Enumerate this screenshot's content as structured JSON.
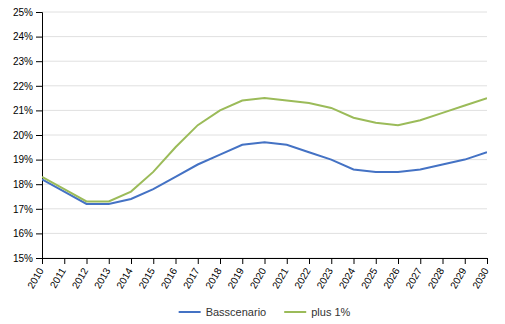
{
  "chart_data": {
    "type": "line",
    "x": [
      2010,
      2011,
      2012,
      2013,
      2014,
      2015,
      2016,
      2017,
      2018,
      2019,
      2020,
      2021,
      2022,
      2023,
      2024,
      2025,
      2026,
      2027,
      2028,
      2029,
      2030
    ],
    "series": [
      {
        "name": "Basscenario",
        "color": "#4472C4",
        "values": [
          0.182,
          0.177,
          0.172,
          0.172,
          0.174,
          0.178,
          0.183,
          0.188,
          0.192,
          0.196,
          0.197,
          0.196,
          0.193,
          0.19,
          0.186,
          0.185,
          0.185,
          0.186,
          0.188,
          0.19,
          0.193
        ]
      },
      {
        "name": "plus 1%",
        "color": "#9BBB59",
        "values": [
          0.183,
          0.178,
          0.173,
          0.173,
          0.177,
          0.185,
          0.195,
          0.204,
          0.21,
          0.214,
          0.215,
          0.214,
          0.213,
          0.211,
          0.207,
          0.205,
          0.204,
          0.206,
          0.209,
          0.212,
          0.215
        ]
      }
    ],
    "xlim": [
      2010,
      2030
    ],
    "xticks": [
      2010,
      2011,
      2012,
      2013,
      2014,
      2015,
      2016,
      2017,
      2018,
      2019,
      2020,
      2021,
      2022,
      2023,
      2024,
      2025,
      2026,
      2027,
      2028,
      2029,
      2030
    ],
    "ylim": [
      0.15,
      0.25
    ],
    "yticks": [
      {
        "value": 0.15,
        "label": "15%"
      },
      {
        "value": 0.16,
        "label": "16%"
      },
      {
        "value": 0.17,
        "label": "17%"
      },
      {
        "value": 0.18,
        "label": "18%"
      },
      {
        "value": 0.19,
        "label": "19%"
      },
      {
        "value": 0.2,
        "label": "20%"
      },
      {
        "value": 0.21,
        "label": "21%"
      },
      {
        "value": 0.22,
        "label": "22%"
      },
      {
        "value": 0.23,
        "label": "23%"
      },
      {
        "value": 0.24,
        "label": "24%"
      },
      {
        "value": 0.25,
        "label": "25%"
      }
    ],
    "grid": true,
    "legend": "bottom"
  }
}
